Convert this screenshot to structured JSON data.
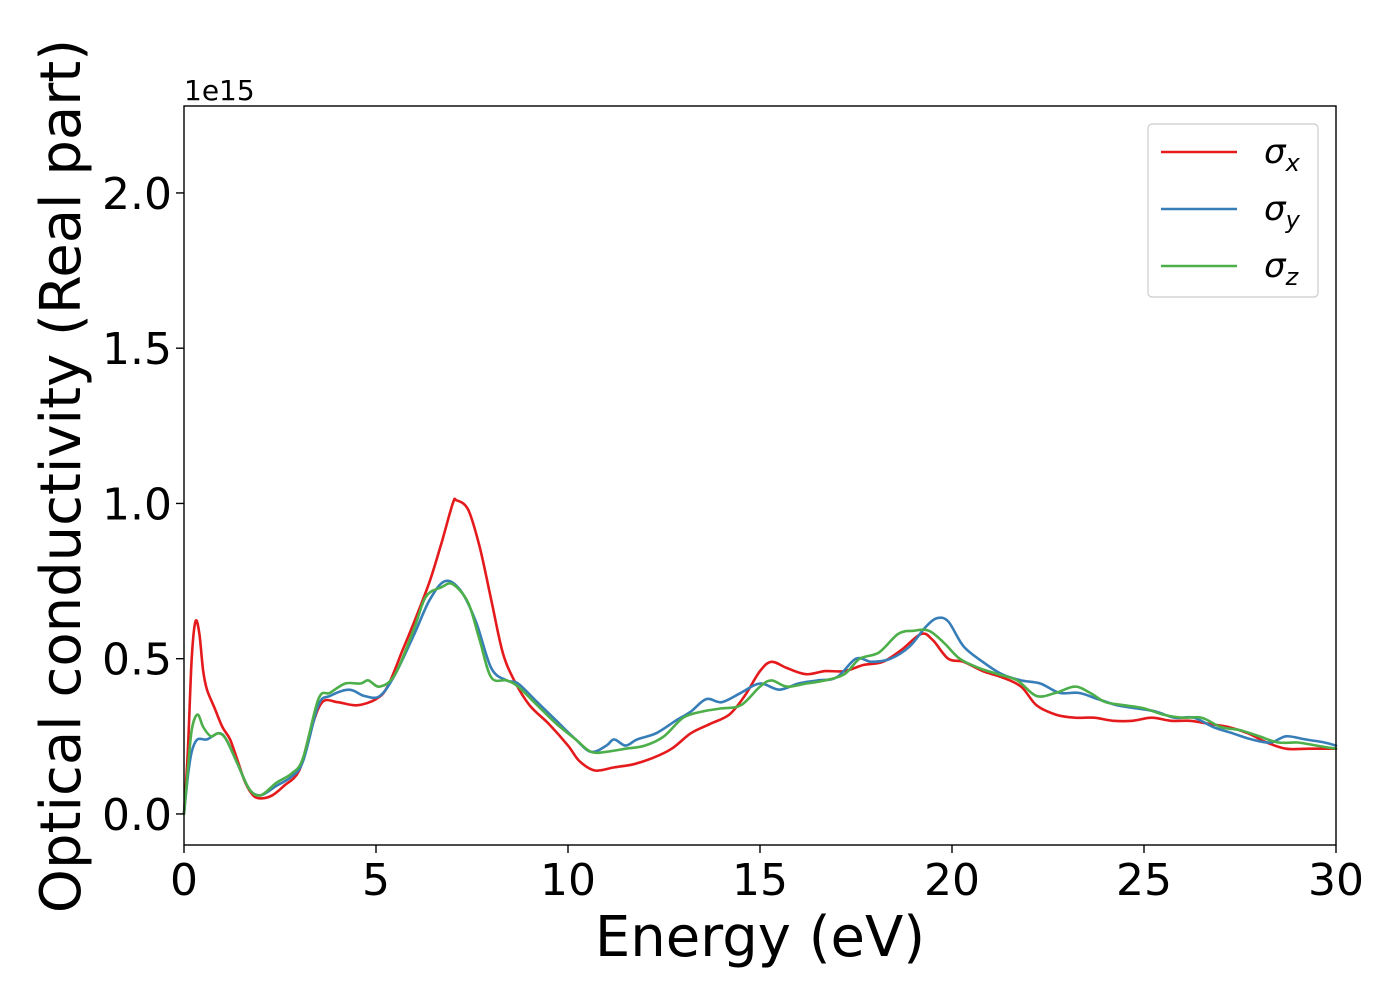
{
  "chart_data": {
    "type": "line",
    "xlabel": "Energy (eV)",
    "ylabel": "Optical conductivity (Real part)",
    "y_offset_label": "1e15",
    "xlim": [
      0,
      30
    ],
    "ylim": [
      -0.1,
      2.28
    ],
    "x_ticks": [
      0,
      5,
      10,
      15,
      20,
      25,
      30
    ],
    "x_tick_labels": [
      "0",
      "5",
      "10",
      "15",
      "20",
      "25",
      "30"
    ],
    "y_ticks": [
      0.0,
      0.5,
      1.0,
      1.5,
      2.0
    ],
    "y_tick_labels": [
      "0.0",
      "0.5",
      "1.0",
      "1.5",
      "2.0"
    ],
    "grid": false,
    "legend_position": "top-right",
    "series": [
      {
        "name": "σx",
        "symbol": "σ",
        "subscript": "x",
        "color": "#e41a1c",
        "points": [
          [
            0,
            0.0
          ],
          [
            0.1,
            0.2
          ],
          [
            0.2,
            0.5
          ],
          [
            0.3,
            0.62
          ],
          [
            0.4,
            0.58
          ],
          [
            0.5,
            0.46
          ],
          [
            0.6,
            0.4
          ],
          [
            0.8,
            0.34
          ],
          [
            1.0,
            0.28
          ],
          [
            1.2,
            0.24
          ],
          [
            1.4,
            0.17
          ],
          [
            1.6,
            0.1
          ],
          [
            1.8,
            0.06
          ],
          [
            2.0,
            0.05
          ],
          [
            2.3,
            0.06
          ],
          [
            2.6,
            0.09
          ],
          [
            3.0,
            0.14
          ],
          [
            3.3,
            0.27
          ],
          [
            3.6,
            0.36
          ],
          [
            4.0,
            0.36
          ],
          [
            4.5,
            0.35
          ],
          [
            5.0,
            0.37
          ],
          [
            5.3,
            0.41
          ],
          [
            5.7,
            0.53
          ],
          [
            6.0,
            0.62
          ],
          [
            6.4,
            0.75
          ],
          [
            6.7,
            0.87
          ],
          [
            7.0,
            1.0
          ],
          [
            7.1,
            1.01
          ],
          [
            7.4,
            0.98
          ],
          [
            7.7,
            0.86
          ],
          [
            8.0,
            0.69
          ],
          [
            8.3,
            0.52
          ],
          [
            8.6,
            0.43
          ],
          [
            9.0,
            0.35
          ],
          [
            9.5,
            0.29
          ],
          [
            10.0,
            0.22
          ],
          [
            10.3,
            0.17
          ],
          [
            10.7,
            0.14
          ],
          [
            11.2,
            0.15
          ],
          [
            11.7,
            0.16
          ],
          [
            12.2,
            0.18
          ],
          [
            12.7,
            0.21
          ],
          [
            13.2,
            0.26
          ],
          [
            13.7,
            0.29
          ],
          [
            14.2,
            0.32
          ],
          [
            14.6,
            0.38
          ],
          [
            15.0,
            0.46
          ],
          [
            15.3,
            0.49
          ],
          [
            15.7,
            0.47
          ],
          [
            16.2,
            0.45
          ],
          [
            16.7,
            0.46
          ],
          [
            17.2,
            0.46
          ],
          [
            17.7,
            0.48
          ],
          [
            18.2,
            0.49
          ],
          [
            18.7,
            0.53
          ],
          [
            19.2,
            0.58
          ],
          [
            19.5,
            0.56
          ],
          [
            19.9,
            0.5
          ],
          [
            20.3,
            0.49
          ],
          [
            20.8,
            0.46
          ],
          [
            21.3,
            0.44
          ],
          [
            21.8,
            0.41
          ],
          [
            22.2,
            0.35
          ],
          [
            22.7,
            0.32
          ],
          [
            23.2,
            0.31
          ],
          [
            23.7,
            0.31
          ],
          [
            24.2,
            0.3
          ],
          [
            24.7,
            0.3
          ],
          [
            25.2,
            0.31
          ],
          [
            25.7,
            0.3
          ],
          [
            26.2,
            0.3
          ],
          [
            26.7,
            0.29
          ],
          [
            27.2,
            0.28
          ],
          [
            27.7,
            0.26
          ],
          [
            28.2,
            0.23
          ],
          [
            28.7,
            0.21
          ],
          [
            29.3,
            0.21
          ],
          [
            30.0,
            0.21
          ]
        ]
      },
      {
        "name": "σy",
        "symbol": "σ",
        "subscript": "y",
        "color": "#377eb8",
        "points": [
          [
            0,
            0.0
          ],
          [
            0.1,
            0.12
          ],
          [
            0.2,
            0.2
          ],
          [
            0.35,
            0.24
          ],
          [
            0.6,
            0.24
          ],
          [
            0.9,
            0.26
          ],
          [
            1.1,
            0.24
          ],
          [
            1.4,
            0.16
          ],
          [
            1.7,
            0.08
          ],
          [
            2.0,
            0.06
          ],
          [
            2.4,
            0.09
          ],
          [
            2.8,
            0.12
          ],
          [
            3.1,
            0.17
          ],
          [
            3.5,
            0.35
          ],
          [
            3.8,
            0.38
          ],
          [
            4.3,
            0.4
          ],
          [
            4.7,
            0.38
          ],
          [
            5.1,
            0.38
          ],
          [
            5.5,
            0.45
          ],
          [
            6.0,
            0.58
          ],
          [
            6.4,
            0.69
          ],
          [
            6.8,
            0.75
          ],
          [
            7.2,
            0.72
          ],
          [
            7.6,
            0.62
          ],
          [
            8.0,
            0.47
          ],
          [
            8.4,
            0.43
          ],
          [
            8.7,
            0.42
          ],
          [
            9.2,
            0.36
          ],
          [
            9.7,
            0.3
          ],
          [
            10.2,
            0.24
          ],
          [
            10.6,
            0.2
          ],
          [
            11.0,
            0.22
          ],
          [
            11.2,
            0.24
          ],
          [
            11.5,
            0.22
          ],
          [
            11.8,
            0.24
          ],
          [
            12.3,
            0.26
          ],
          [
            12.8,
            0.3
          ],
          [
            13.2,
            0.33
          ],
          [
            13.6,
            0.37
          ],
          [
            14.0,
            0.36
          ],
          [
            14.5,
            0.39
          ],
          [
            15.0,
            0.42
          ],
          [
            15.5,
            0.4
          ],
          [
            16.0,
            0.42
          ],
          [
            16.5,
            0.43
          ],
          [
            17.0,
            0.44
          ],
          [
            17.5,
            0.5
          ],
          [
            17.9,
            0.49
          ],
          [
            18.4,
            0.5
          ],
          [
            18.9,
            0.54
          ],
          [
            19.3,
            0.6
          ],
          [
            19.6,
            0.63
          ],
          [
            19.9,
            0.62
          ],
          [
            20.3,
            0.54
          ],
          [
            20.8,
            0.49
          ],
          [
            21.3,
            0.45
          ],
          [
            21.8,
            0.43
          ],
          [
            22.3,
            0.42
          ],
          [
            22.8,
            0.39
          ],
          [
            23.3,
            0.39
          ],
          [
            23.8,
            0.37
          ],
          [
            24.3,
            0.35
          ],
          [
            24.8,
            0.34
          ],
          [
            25.3,
            0.33
          ],
          [
            25.8,
            0.31
          ],
          [
            26.3,
            0.31
          ],
          [
            26.8,
            0.28
          ],
          [
            27.3,
            0.26
          ],
          [
            27.8,
            0.24
          ],
          [
            28.3,
            0.23
          ],
          [
            28.7,
            0.25
          ],
          [
            29.2,
            0.24
          ],
          [
            29.7,
            0.23
          ],
          [
            30.0,
            0.22
          ]
        ]
      },
      {
        "name": "σz",
        "symbol": "σ",
        "subscript": "z",
        "color": "#4daf4a",
        "points": [
          [
            0,
            0.0
          ],
          [
            0.1,
            0.14
          ],
          [
            0.2,
            0.27
          ],
          [
            0.35,
            0.32
          ],
          [
            0.5,
            0.28
          ],
          [
            0.7,
            0.25
          ],
          [
            0.9,
            0.26
          ],
          [
            1.1,
            0.24
          ],
          [
            1.4,
            0.16
          ],
          [
            1.7,
            0.08
          ],
          [
            2.0,
            0.06
          ],
          [
            2.4,
            0.1
          ],
          [
            2.8,
            0.13
          ],
          [
            3.1,
            0.18
          ],
          [
            3.5,
            0.37
          ],
          [
            3.8,
            0.39
          ],
          [
            4.2,
            0.42
          ],
          [
            4.6,
            0.42
          ],
          [
            4.8,
            0.43
          ],
          [
            5.1,
            0.41
          ],
          [
            5.5,
            0.45
          ],
          [
            6.0,
            0.6
          ],
          [
            6.3,
            0.7
          ],
          [
            6.7,
            0.73
          ],
          [
            7.0,
            0.74
          ],
          [
            7.4,
            0.68
          ],
          [
            7.7,
            0.56
          ],
          [
            8.0,
            0.44
          ],
          [
            8.4,
            0.43
          ],
          [
            8.7,
            0.41
          ],
          [
            9.2,
            0.35
          ],
          [
            9.7,
            0.29
          ],
          [
            10.2,
            0.24
          ],
          [
            10.6,
            0.2
          ],
          [
            11.0,
            0.2
          ],
          [
            11.5,
            0.21
          ],
          [
            12.0,
            0.22
          ],
          [
            12.5,
            0.25
          ],
          [
            13.0,
            0.31
          ],
          [
            13.5,
            0.33
          ],
          [
            14.0,
            0.34
          ],
          [
            14.5,
            0.35
          ],
          [
            15.0,
            0.41
          ],
          [
            15.3,
            0.43
          ],
          [
            15.7,
            0.41
          ],
          [
            16.2,
            0.42
          ],
          [
            16.7,
            0.43
          ],
          [
            17.2,
            0.45
          ],
          [
            17.6,
            0.5
          ],
          [
            18.1,
            0.52
          ],
          [
            18.6,
            0.58
          ],
          [
            19.0,
            0.59
          ],
          [
            19.4,
            0.59
          ],
          [
            19.8,
            0.55
          ],
          [
            20.2,
            0.5
          ],
          [
            20.7,
            0.47
          ],
          [
            21.2,
            0.45
          ],
          [
            21.7,
            0.43
          ],
          [
            22.2,
            0.38
          ],
          [
            22.7,
            0.39
          ],
          [
            23.2,
            0.41
          ],
          [
            23.6,
            0.39
          ],
          [
            24.0,
            0.36
          ],
          [
            24.5,
            0.35
          ],
          [
            25.0,
            0.34
          ],
          [
            25.5,
            0.32
          ],
          [
            26.0,
            0.31
          ],
          [
            26.5,
            0.31
          ],
          [
            27.0,
            0.28
          ],
          [
            27.5,
            0.27
          ],
          [
            28.0,
            0.25
          ],
          [
            28.5,
            0.23
          ],
          [
            29.0,
            0.23
          ],
          [
            29.5,
            0.22
          ],
          [
            30.0,
            0.21
          ]
        ]
      }
    ]
  }
}
